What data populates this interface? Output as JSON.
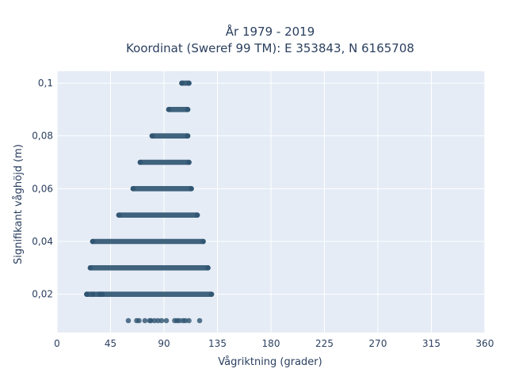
{
  "chart_data": {
    "type": "scatter",
    "title_line1": "År 1979 - 2019",
    "title_line2": "Koordinat (Sweref 99 TM): E 353843, N 6165708",
    "xlabel": "Vågriktning (grader)",
    "ylabel": "Signifikant våghöjd (m)",
    "xlim": [
      0,
      360
    ],
    "ylim": [
      0.0055,
      0.1045
    ],
    "x_ticks": [
      0,
      45,
      90,
      135,
      180,
      225,
      270,
      315,
      360
    ],
    "x_tick_labels": [
      "0",
      "45",
      "90",
      "135",
      "180",
      "225",
      "270",
      "315",
      "360"
    ],
    "y_ticks": [
      0.02,
      0.04,
      0.06,
      0.08,
      0.1
    ],
    "y_tick_labels": [
      "0,02",
      "0,04",
      "0,06",
      "0,08",
      "0,1"
    ],
    "grid": true,
    "background_color": "#e5ecf6",
    "marker_color": "#2e5470",
    "series": [
      {
        "bands": [
          {
            "y": 0.01,
            "x_min": 60,
            "x_max": 120,
            "sparse": true,
            "x_points": [
              60,
              67,
              69,
              74,
              78,
              79,
              82,
              85,
              88,
              92,
              99,
              101,
              103,
              106,
              108,
              111,
              120
            ]
          },
          {
            "y": 0.02,
            "x_min": 25,
            "x_max": 130,
            "sparse": false,
            "x_points": [
              25,
              30,
              36,
              38
            ]
          },
          {
            "y": 0.03,
            "x_min": 28,
            "x_max": 127,
            "sparse": false,
            "x_points": []
          },
          {
            "y": 0.04,
            "x_min": 30,
            "x_max": 123,
            "sparse": false,
            "x_points": []
          },
          {
            "y": 0.05,
            "x_min": 52,
            "x_max": 118,
            "sparse": false,
            "x_points": []
          },
          {
            "y": 0.06,
            "x_min": 64,
            "x_max": 113,
            "sparse": false,
            "x_points": []
          },
          {
            "y": 0.07,
            "x_min": 70,
            "x_max": 111,
            "sparse": false,
            "x_points": []
          },
          {
            "y": 0.08,
            "x_min": 80,
            "x_max": 110,
            "sparse": false,
            "x_points": []
          },
          {
            "y": 0.09,
            "x_min": 94,
            "x_max": 110,
            "sparse": false,
            "x_points": []
          },
          {
            "y": 0.1,
            "x_min": 105,
            "x_max": 111,
            "sparse": false,
            "x_points": []
          }
        ]
      }
    ]
  }
}
